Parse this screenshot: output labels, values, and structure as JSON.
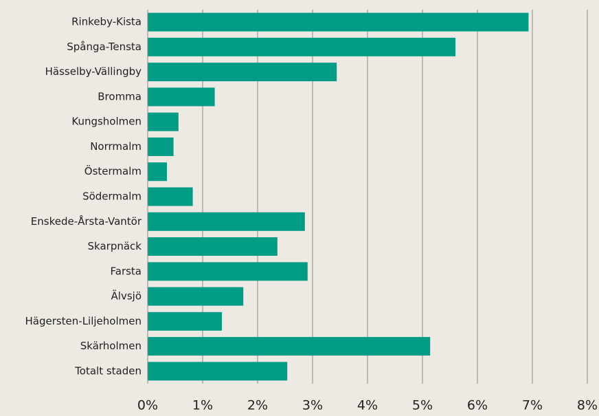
{
  "chart_data": {
    "type": "hbar",
    "categories": [
      "Rinkeby-Kista",
      "Spånga-Tensta",
      "Hässelby-Vällingby",
      "Bromma",
      "Kungsholmen",
      "Norrmalm",
      "Östermalm",
      "Södermalm",
      "Enskede-Årsta-Vantör",
      "Skarpnäck",
      "Farsta",
      "Älvsjö",
      "Hägersten-Liljeholmen",
      "Skärholmen",
      "Totalt staden"
    ],
    "values": [
      6.93,
      5.6,
      3.44,
      1.22,
      0.56,
      0.47,
      0.35,
      0.82,
      2.86,
      2.36,
      2.91,
      1.74,
      1.35,
      5.14,
      2.54
    ],
    "color": "#009c86",
    "xlim": [
      0,
      8
    ],
    "xticks": [
      {
        "value": 0,
        "label": "0%"
      },
      {
        "value": 1,
        "label": "1%"
      },
      {
        "value": 2,
        "label": "2%"
      },
      {
        "value": 3,
        "label": "3%"
      },
      {
        "value": 4,
        "label": "4%"
      },
      {
        "value": 5,
        "label": "5%"
      },
      {
        "value": 6,
        "label": "6%"
      },
      {
        "value": 7,
        "label": "7%"
      },
      {
        "value": 8,
        "label": "8%"
      }
    ],
    "grid": true
  }
}
